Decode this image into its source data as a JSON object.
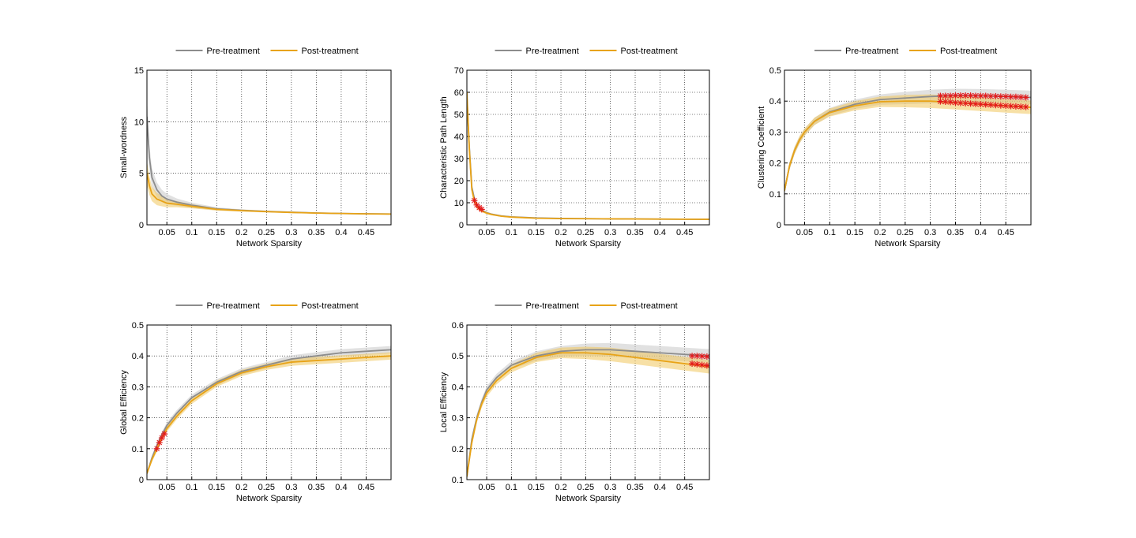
{
  "figure": {
    "legend": {
      "pre_label": "Pre-treatment",
      "post_label": "Post-treatment"
    },
    "colors": {
      "pre": "#8c8c8c",
      "pre_band": "#c8c8c8",
      "post": "#e8a317",
      "post_band": "#f0c65c",
      "marker": "#e31a1c"
    }
  },
  "chart_data": [
    {
      "id": "small-worldness",
      "type": "line",
      "title": "",
      "xlabel": "Network Sparsity",
      "ylabel": "Small-wordness",
      "xlim": [
        0.01,
        0.5
      ],
      "ylim": [
        0,
        15
      ],
      "xticks": [
        0.05,
        0.1,
        0.15,
        0.2,
        0.25,
        0.3,
        0.35,
        0.4,
        0.45
      ],
      "xtick_labels": [
        "0.05",
        "0.1",
        "0.15",
        "0.2",
        "0.25",
        "0.3",
        "0.35",
        "0.4",
        "0.45"
      ],
      "yticks": [
        0,
        5,
        10,
        15
      ],
      "ytick_labels": [
        "0",
        "5",
        "10",
        "15"
      ],
      "x": [
        0.01,
        0.015,
        0.02,
        0.03,
        0.04,
        0.05,
        0.07,
        0.1,
        0.15,
        0.2,
        0.25,
        0.3,
        0.35,
        0.4,
        0.45,
        0.5
      ],
      "series": [
        {
          "name": "Pre-treatment",
          "values": [
            10.5,
            6.5,
            4.6,
            3.4,
            2.8,
            2.5,
            2.2,
            1.9,
            1.55,
            1.4,
            1.3,
            1.22,
            1.15,
            1.1,
            1.07,
            1.05
          ],
          "band": [
            1.8,
            1.2,
            0.9,
            0.7,
            0.6,
            0.5,
            0.35,
            0.25,
            0.15,
            0.1,
            0.08,
            0.06,
            0.05,
            0.05,
            0.05,
            0.05
          ]
        },
        {
          "name": "Post-treatment",
          "values": [
            5.0,
            3.8,
            3.0,
            2.5,
            2.3,
            2.1,
            2.0,
            1.8,
            1.5,
            1.38,
            1.28,
            1.2,
            1.14,
            1.1,
            1.06,
            1.04
          ],
          "band": [
            1.2,
            0.9,
            0.7,
            0.6,
            0.5,
            0.4,
            0.3,
            0.2,
            0.12,
            0.1,
            0.08,
            0.06,
            0.05,
            0.05,
            0.05,
            0.05
          ]
        }
      ],
      "markers": []
    },
    {
      "id": "characteristic-path-length",
      "type": "line",
      "title": "",
      "xlabel": "Network Sparsity",
      "ylabel": "Characteristic Path Length",
      "xlim": [
        0.01,
        0.5
      ],
      "ylim": [
        0,
        70
      ],
      "xticks": [
        0.05,
        0.1,
        0.15,
        0.2,
        0.25,
        0.3,
        0.35,
        0.4,
        0.45
      ],
      "xtick_labels": [
        "0.05",
        "0.1",
        "0.15",
        "0.2",
        "0.25",
        "0.3",
        "0.35",
        "0.4",
        "0.45"
      ],
      "yticks": [
        0,
        10,
        20,
        30,
        40,
        50,
        60,
        70
      ],
      "ytick_labels": [
        "0",
        "10",
        "20",
        "30",
        "40",
        "50",
        "60",
        "70"
      ],
      "x": [
        0.01,
        0.015,
        0.02,
        0.025,
        0.03,
        0.035,
        0.04,
        0.05,
        0.06,
        0.08,
        0.1,
        0.15,
        0.2,
        0.3,
        0.4,
        0.5
      ],
      "series": [
        {
          "name": "Pre-treatment",
          "values": [
            58,
            35,
            17,
            12,
            9,
            7.6,
            6.6,
            5.5,
            4.8,
            4.0,
            3.6,
            3.1,
            2.9,
            2.7,
            2.6,
            2.5
          ],
          "band": [
            4,
            3,
            2,
            1.5,
            1.2,
            0.8,
            0.6,
            0.5,
            0.4,
            0.3,
            0.2,
            0.2,
            0.2,
            0.2,
            0.2,
            0.2
          ]
        },
        {
          "name": "Post-treatment",
          "values": [
            60,
            34,
            16,
            11,
            8.5,
            7.2,
            6.3,
            5.3,
            4.7,
            3.9,
            3.5,
            3.0,
            2.8,
            2.7,
            2.6,
            2.5
          ],
          "band": [
            4,
            3,
            2,
            1.5,
            1.2,
            0.8,
            0.6,
            0.5,
            0.4,
            0.3,
            0.2,
            0.2,
            0.2,
            0.2,
            0.2,
            0.2
          ]
        }
      ],
      "markers": [
        {
          "x": 0.025,
          "y": 11
        },
        {
          "x": 0.03,
          "y": 9
        },
        {
          "x": 0.035,
          "y": 7.8
        },
        {
          "x": 0.04,
          "y": 7
        }
      ]
    },
    {
      "id": "clustering-coefficient",
      "type": "line",
      "title": "",
      "xlabel": "Network Sparsity",
      "ylabel": "Clustering Coefficient",
      "xlim": [
        0.01,
        0.5
      ],
      "ylim": [
        0,
        0.5
      ],
      "xticks": [
        0.05,
        0.1,
        0.15,
        0.2,
        0.25,
        0.3,
        0.35,
        0.4,
        0.45
      ],
      "xtick_labels": [
        "0.05",
        "0.1",
        "0.15",
        "0.2",
        "0.25",
        "0.3",
        "0.35",
        "0.4",
        "0.45"
      ],
      "yticks": [
        0,
        0.1,
        0.2,
        0.3,
        0.4,
        0.5
      ],
      "ytick_labels": [
        "0",
        "0.1",
        "0.2",
        "0.3",
        "0.4",
        "0.5"
      ],
      "x": [
        0.01,
        0.02,
        0.03,
        0.04,
        0.05,
        0.07,
        0.1,
        0.15,
        0.2,
        0.25,
        0.3,
        0.35,
        0.4,
        0.45,
        0.5
      ],
      "series": [
        {
          "name": "Pre-treatment",
          "values": [
            0.11,
            0.19,
            0.24,
            0.275,
            0.3,
            0.335,
            0.365,
            0.39,
            0.405,
            0.41,
            0.415,
            0.418,
            0.417,
            0.415,
            0.412
          ],
          "band": [
            0.01,
            0.012,
            0.012,
            0.012,
            0.012,
            0.012,
            0.013,
            0.015,
            0.017,
            0.02,
            0.022,
            0.022,
            0.022,
            0.022,
            0.022
          ]
        },
        {
          "name": "Post-treatment",
          "values": [
            0.11,
            0.19,
            0.24,
            0.275,
            0.3,
            0.335,
            0.363,
            0.385,
            0.398,
            0.4,
            0.4,
            0.395,
            0.39,
            0.385,
            0.38
          ],
          "band": [
            0.01,
            0.012,
            0.012,
            0.012,
            0.012,
            0.012,
            0.013,
            0.015,
            0.017,
            0.02,
            0.022,
            0.022,
            0.022,
            0.022,
            0.022
          ]
        }
      ],
      "markers": [
        {
          "x": 0.32,
          "y": 0.417
        },
        {
          "x": 0.33,
          "y": 0.417
        },
        {
          "x": 0.34,
          "y": 0.417
        },
        {
          "x": 0.35,
          "y": 0.418
        },
        {
          "x": 0.36,
          "y": 0.418
        },
        {
          "x": 0.37,
          "y": 0.418
        },
        {
          "x": 0.38,
          "y": 0.418
        },
        {
          "x": 0.39,
          "y": 0.417
        },
        {
          "x": 0.4,
          "y": 0.417
        },
        {
          "x": 0.41,
          "y": 0.417
        },
        {
          "x": 0.42,
          "y": 0.416
        },
        {
          "x": 0.43,
          "y": 0.416
        },
        {
          "x": 0.44,
          "y": 0.415
        },
        {
          "x": 0.45,
          "y": 0.415
        },
        {
          "x": 0.46,
          "y": 0.414
        },
        {
          "x": 0.47,
          "y": 0.414
        },
        {
          "x": 0.48,
          "y": 0.413
        },
        {
          "x": 0.49,
          "y": 0.412
        },
        {
          "x": 0.32,
          "y": 0.399
        },
        {
          "x": 0.33,
          "y": 0.398
        },
        {
          "x": 0.34,
          "y": 0.397
        },
        {
          "x": 0.35,
          "y": 0.395
        },
        {
          "x": 0.36,
          "y": 0.394
        },
        {
          "x": 0.37,
          "y": 0.393
        },
        {
          "x": 0.38,
          "y": 0.392
        },
        {
          "x": 0.39,
          "y": 0.391
        },
        {
          "x": 0.4,
          "y": 0.39
        },
        {
          "x": 0.41,
          "y": 0.389
        },
        {
          "x": 0.42,
          "y": 0.388
        },
        {
          "x": 0.43,
          "y": 0.387
        },
        {
          "x": 0.44,
          "y": 0.386
        },
        {
          "x": 0.45,
          "y": 0.385
        },
        {
          "x": 0.46,
          "y": 0.384
        },
        {
          "x": 0.47,
          "y": 0.383
        },
        {
          "x": 0.48,
          "y": 0.382
        },
        {
          "x": 0.49,
          "y": 0.381
        }
      ]
    },
    {
      "id": "global-efficiency",
      "type": "line",
      "title": "",
      "xlabel": "Network Sparsity",
      "ylabel": "Global Efficiency",
      "xlim": [
        0.01,
        0.5
      ],
      "ylim": [
        0,
        0.5
      ],
      "xticks": [
        0.05,
        0.1,
        0.15,
        0.2,
        0.25,
        0.3,
        0.35,
        0.4,
        0.45
      ],
      "xtick_labels": [
        "0.05",
        "0.1",
        "0.15",
        "0.2",
        "0.25",
        "0.3",
        "0.35",
        "0.4",
        "0.45"
      ],
      "yticks": [
        0,
        0.1,
        0.2,
        0.3,
        0.4,
        0.5
      ],
      "ytick_labels": [
        "0",
        "0.1",
        "0.2",
        "0.3",
        "0.4",
        "0.5"
      ],
      "x": [
        0.01,
        0.02,
        0.03,
        0.04,
        0.05,
        0.07,
        0.1,
        0.15,
        0.2,
        0.25,
        0.3,
        0.35,
        0.4,
        0.45,
        0.5
      ],
      "series": [
        {
          "name": "Pre-treatment",
          "values": [
            0.02,
            0.07,
            0.11,
            0.145,
            0.175,
            0.215,
            0.265,
            0.315,
            0.35,
            0.37,
            0.39,
            0.4,
            0.41,
            0.415,
            0.42
          ],
          "band": [
            0.005,
            0.008,
            0.01,
            0.01,
            0.01,
            0.01,
            0.01,
            0.01,
            0.01,
            0.01,
            0.012,
            0.012,
            0.012,
            0.012,
            0.012
          ]
        },
        {
          "name": "Post-treatment",
          "values": [
            0.02,
            0.065,
            0.1,
            0.135,
            0.165,
            0.205,
            0.255,
            0.31,
            0.345,
            0.365,
            0.38,
            0.385,
            0.39,
            0.395,
            0.4
          ],
          "band": [
            0.005,
            0.008,
            0.01,
            0.01,
            0.01,
            0.01,
            0.01,
            0.01,
            0.01,
            0.01,
            0.012,
            0.012,
            0.012,
            0.012,
            0.012
          ]
        }
      ],
      "markers": [
        {
          "x": 0.03,
          "y": 0.1
        },
        {
          "x": 0.035,
          "y": 0.12
        },
        {
          "x": 0.04,
          "y": 0.135
        },
        {
          "x": 0.045,
          "y": 0.148
        }
      ]
    },
    {
      "id": "local-efficiency",
      "type": "line",
      "title": "",
      "xlabel": "Network Sparsity",
      "ylabel": "Local Efficiency",
      "xlim": [
        0.01,
        0.5
      ],
      "ylim": [
        0.1,
        0.6
      ],
      "xticks": [
        0.05,
        0.1,
        0.15,
        0.2,
        0.25,
        0.3,
        0.35,
        0.4,
        0.45
      ],
      "xtick_labels": [
        "0.05",
        "0.1",
        "0.15",
        "0.2",
        "0.25",
        "0.3",
        "0.35",
        "0.4",
        "0.45"
      ],
      "yticks": [
        0.1,
        0.2,
        0.3,
        0.4,
        0.5,
        0.6
      ],
      "ytick_labels": [
        "0.1",
        "0.2",
        "0.3",
        "0.4",
        "0.5",
        "0.6"
      ],
      "x": [
        0.01,
        0.02,
        0.03,
        0.04,
        0.05,
        0.07,
        0.1,
        0.15,
        0.2,
        0.25,
        0.3,
        0.35,
        0.4,
        0.45,
        0.5
      ],
      "series": [
        {
          "name": "Pre-treatment",
          "values": [
            0.11,
            0.23,
            0.3,
            0.35,
            0.39,
            0.43,
            0.47,
            0.5,
            0.515,
            0.52,
            0.52,
            0.515,
            0.51,
            0.505,
            0.5
          ],
          "band": [
            0.01,
            0.012,
            0.012,
            0.012,
            0.012,
            0.012,
            0.013,
            0.015,
            0.017,
            0.02,
            0.022,
            0.022,
            0.022,
            0.022,
            0.022
          ]
        },
        {
          "name": "Post-treatment",
          "values": [
            0.11,
            0.22,
            0.295,
            0.345,
            0.38,
            0.42,
            0.46,
            0.495,
            0.51,
            0.51,
            0.505,
            0.495,
            0.485,
            0.475,
            0.465
          ],
          "band": [
            0.01,
            0.012,
            0.012,
            0.012,
            0.012,
            0.012,
            0.013,
            0.015,
            0.017,
            0.02,
            0.022,
            0.022,
            0.022,
            0.022,
            0.022
          ]
        }
      ],
      "markers": [
        {
          "x": 0.465,
          "y": 0.5
        },
        {
          "x": 0.475,
          "y": 0.5
        },
        {
          "x": 0.485,
          "y": 0.499
        },
        {
          "x": 0.495,
          "y": 0.498
        },
        {
          "x": 0.465,
          "y": 0.475
        },
        {
          "x": 0.475,
          "y": 0.473
        },
        {
          "x": 0.485,
          "y": 0.471
        },
        {
          "x": 0.495,
          "y": 0.469
        }
      ]
    }
  ]
}
